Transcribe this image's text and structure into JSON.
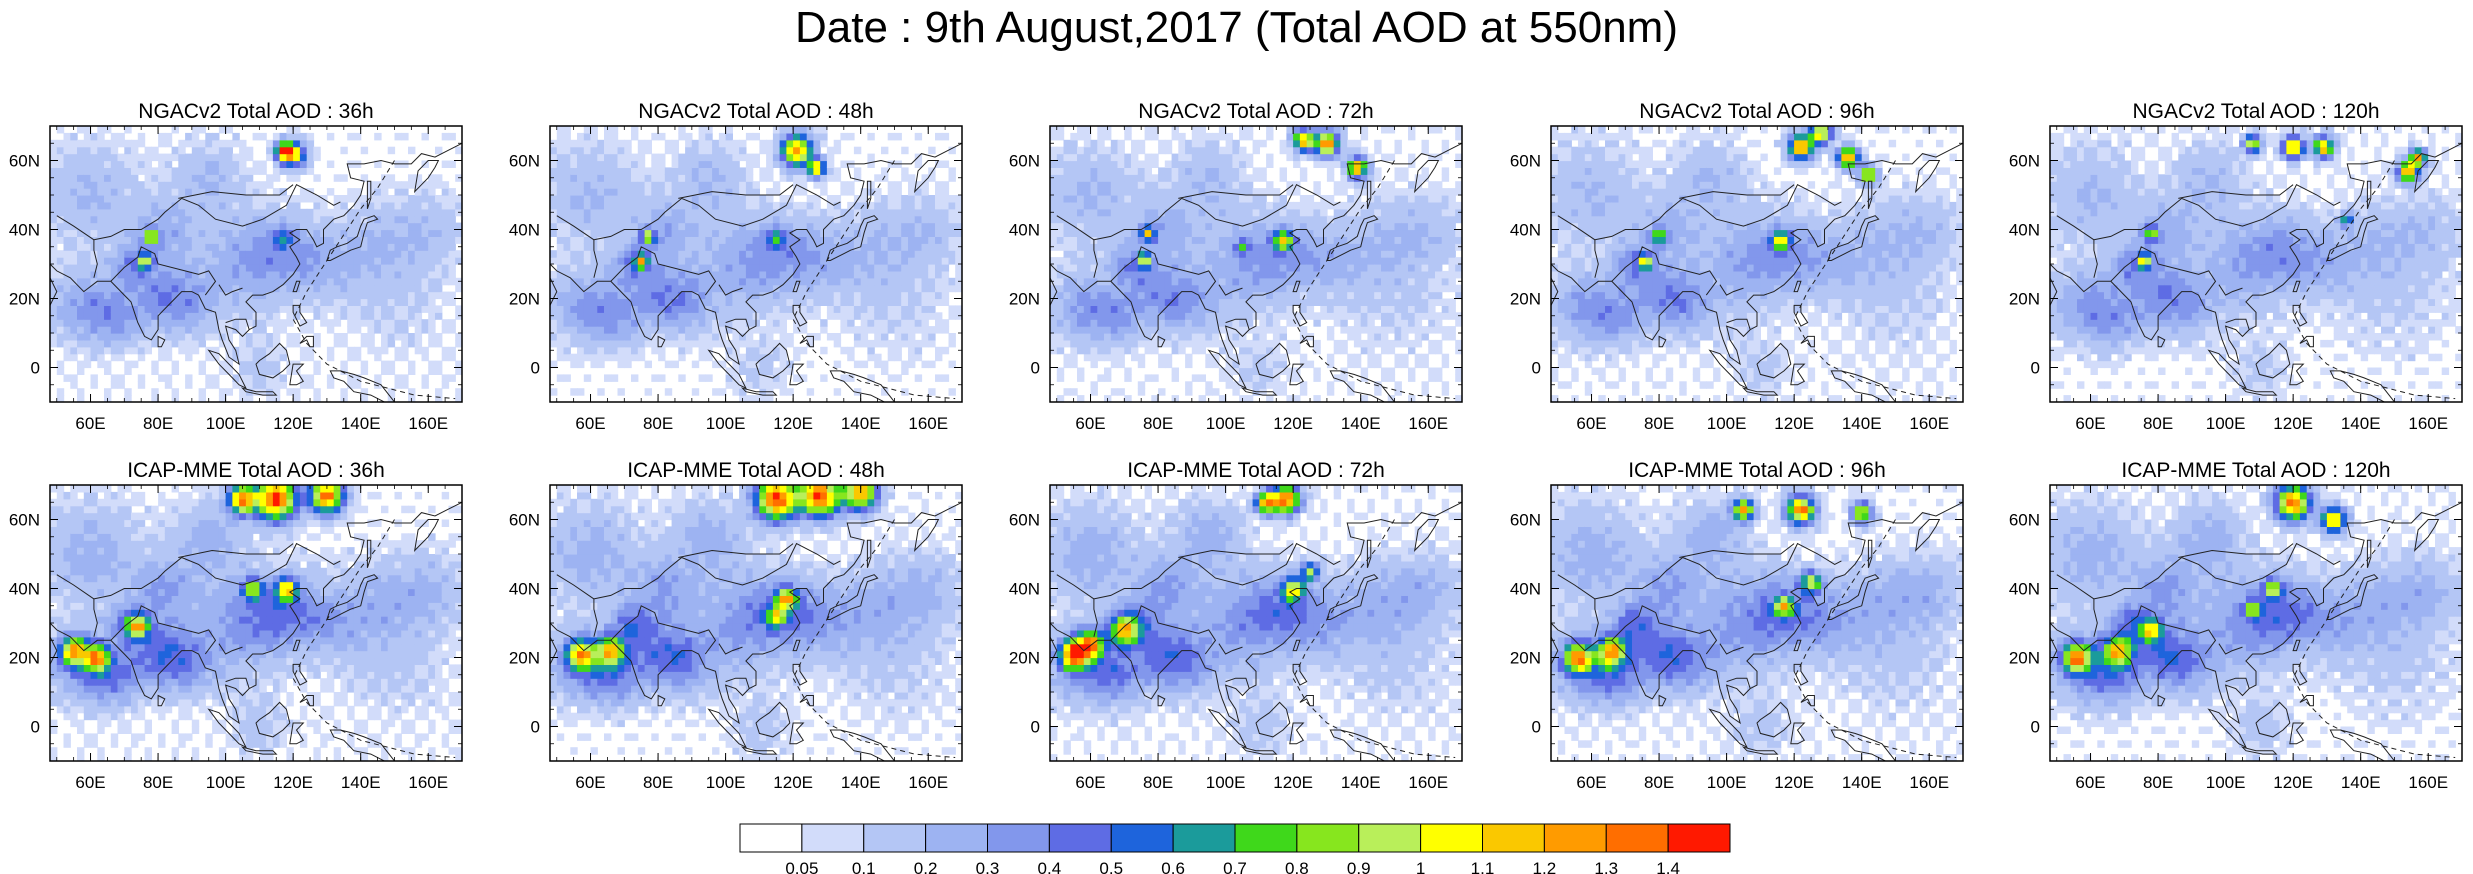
{
  "title": "Date : 9th August,2017 (Total AOD at 550nm)",
  "rows": [
    {
      "model": "NGACv2",
      "panels": [
        {
          "title": "NGACv2 Total AOD : 36h"
        },
        {
          "title": "NGACv2 Total AOD : 48h"
        },
        {
          "title": "NGACv2 Total AOD : 72h"
        },
        {
          "title": "NGACv2 Total AOD : 96h"
        },
        {
          "title": "NGACv2 Total AOD : 120h"
        }
      ]
    },
    {
      "model": "ICAP-MME",
      "panels": [
        {
          "title": "ICAP-MME Total AOD : 36h"
        },
        {
          "title": "ICAP-MME Total AOD : 48h"
        },
        {
          "title": "ICAP-MME Total AOD : 72h"
        },
        {
          "title": "ICAP-MME Total AOD : 96h"
        },
        {
          "title": "ICAP-MME Total AOD : 120h"
        }
      ]
    }
  ],
  "map": {
    "lon_range": [
      48,
      170
    ],
    "lat_range": [
      -10,
      70
    ],
    "lon_ticks": [
      "60E",
      "80E",
      "100E",
      "120E",
      "140E",
      "160E"
    ],
    "lon_tick_values": [
      60,
      80,
      100,
      120,
      140,
      160
    ],
    "lat_ticks": [
      "0",
      "20N",
      "40N",
      "60N"
    ],
    "lat_tick_values": [
      0,
      20,
      40,
      60
    ]
  },
  "colorbar": {
    "labels": [
      "0.05",
      "0.1",
      "0.2",
      "0.3",
      "0.4",
      "0.5",
      "0.6",
      "0.7",
      "0.8",
      "0.9",
      "1",
      "1.1",
      "1.2",
      "1.3",
      "1.4"
    ],
    "colors": [
      "#ffffff",
      "#d2dcfa",
      "#b4c6f5",
      "#9db3f2",
      "#8297ec",
      "#5e6ce4",
      "#1e64dc",
      "#1b9b9b",
      "#3fd81b",
      "#87e61e",
      "#b9ef5a",
      "#ffff00",
      "#fac800",
      "#ff9b00",
      "#ff6e00",
      "#ff1900"
    ]
  }
}
